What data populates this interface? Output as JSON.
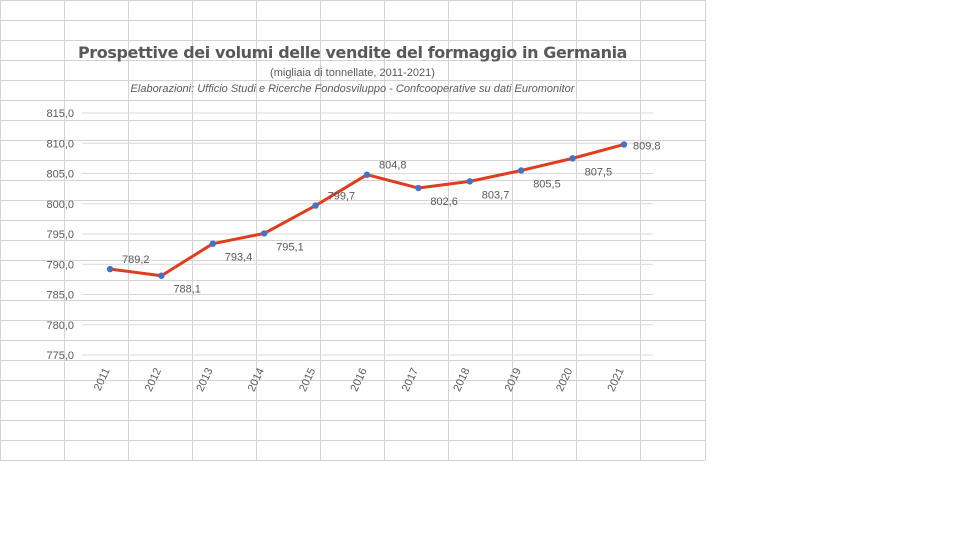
{
  "chart_data": {
    "type": "line",
    "title": "Prospettive dei volumi delle vendite del formaggio in Germania",
    "subtitle": "(migliaia di tonnellate, 2011-2021)",
    "source": "Elaborazioni: Ufficio Studi e Ricerche  Fondosviluppo - Confcooperative su dati Euromonitor",
    "xlabel": "",
    "ylabel": "",
    "categories": [
      "2011",
      "2012",
      "2013",
      "2014",
      "2015",
      "2016",
      "2017",
      "2018",
      "2019",
      "2020",
      "2021"
    ],
    "series": [
      {
        "values": [
          789.2,
          788.1,
          793.4,
          795.1,
          799.7,
          804.8,
          802.6,
          803.7,
          805.5,
          807.5,
          809.8
        ],
        "data_labels": [
          "789,2",
          "788,1",
          "793,4",
          "795,1",
          "799,7",
          "804,8",
          "802,6",
          "803,7",
          "805,5",
          "807,5",
          "809,8"
        ],
        "color": "#e03c1f",
        "marker_color": "#4472c4"
      }
    ],
    "ylim": [
      775,
      815
    ],
    "y_ticks": [
      775,
      780,
      785,
      790,
      795,
      800,
      805,
      810,
      815
    ],
    "y_tick_labels": [
      "775,0",
      "780,0",
      "785,0",
      "790,0",
      "795,0",
      "800,0",
      "805,0",
      "810,0",
      "815,0"
    ],
    "grid": true,
    "legend": "none"
  },
  "colors": {
    "line": "#e03c1f",
    "marker": "#4472c4",
    "cell_grid": "#d4d4d4",
    "text": "#595959"
  }
}
